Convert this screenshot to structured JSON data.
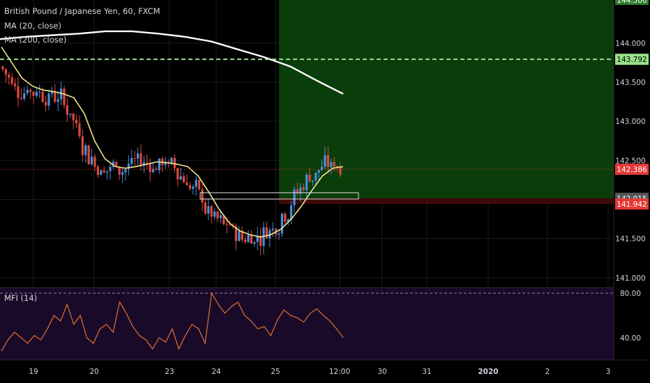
{
  "header": {
    "title": "British Pound / Japanese Yen, 60, FXCM",
    "ma20_label": "MA (20, close)",
    "ma200_label": "MA (200, close)",
    "mfi_label": "MFI (14)"
  },
  "colors": {
    "up_candle": "#4a90d9",
    "down_candle": "#e0483e",
    "ma20": "#f0e68c",
    "ma200": "#ffffff",
    "profit_zone": "#0a3d0a",
    "stop_zone": "#3d0a0a",
    "target_line": "#98e08a",
    "mfi_line": "#e07030",
    "mfi_bg": "#1a0a2a",
    "current_price_tag": "#e53935"
  },
  "chart_data": [
    {
      "type": "candlestick",
      "title": "British Pound / Japanese Yen, 60, FXCM",
      "x_ticks": [
        "19",
        "20",
        "23",
        "24",
        "25",
        "12:00",
        "30",
        "31",
        "2020",
        "2",
        "3"
      ],
      "y_ticks": [
        141.0,
        141.5,
        142.0,
        142.5,
        143.0,
        143.5,
        144.0
      ],
      "y_tick_labels": [
        "141.000",
        "141.500",
        "",
        "142.500",
        "143.000",
        "143.500",
        "144.000"
      ],
      "ylim": [
        140.9,
        144.55
      ],
      "price_levels": {
        "target": 143.792,
        "current": 142.386,
        "entry": 142.015,
        "stop": 141.942
      },
      "price_level_labels": {
        "target": "143.792",
        "current": "142.386",
        "entry": "142.015",
        "stop": "141.942"
      },
      "top_partial_label": "144.500",
      "series": [
        {
          "name": "MA (20, close)",
          "values": [
            143.95,
            143.75,
            143.55,
            143.45,
            143.4,
            143.38,
            143.35,
            143.3,
            143.1,
            142.75,
            142.52,
            142.42,
            142.4,
            142.42,
            142.45,
            142.48,
            142.47,
            142.45,
            142.42,
            142.3,
            142.1,
            141.88,
            141.7,
            141.6,
            141.55,
            141.52,
            141.55,
            141.62,
            141.75,
            141.92,
            142.12,
            142.3,
            142.4,
            142.42
          ]
        },
        {
          "name": "MA (200, close)",
          "values": [
            144.05,
            144.08,
            144.1,
            144.12,
            144.15,
            144.15,
            144.12,
            144.08,
            144.02,
            143.92,
            143.82,
            143.7,
            143.52,
            143.35
          ]
        }
      ]
    },
    {
      "type": "line",
      "title": "MFI (14)",
      "y_ticks": [
        40.0,
        80.0
      ],
      "y_tick_labels": [
        "40.00",
        "80.00"
      ],
      "ylim": [
        20,
        85
      ],
      "bands": [
        80,
        20
      ],
      "series": [
        {
          "name": "MFI (14)",
          "values": [
            28,
            38,
            45,
            40,
            35,
            42,
            38,
            48,
            60,
            55,
            70,
            52,
            60,
            40,
            35,
            48,
            52,
            45,
            72,
            62,
            50,
            42,
            38,
            30,
            40,
            36,
            48,
            30,
            42,
            52,
            48,
            35,
            80,
            70,
            62,
            68,
            72,
            60,
            55,
            48,
            50,
            42,
            56,
            65,
            60,
            58,
            54,
            62,
            66,
            60,
            55,
            48,
            40
          ]
        }
      ]
    }
  ]
}
